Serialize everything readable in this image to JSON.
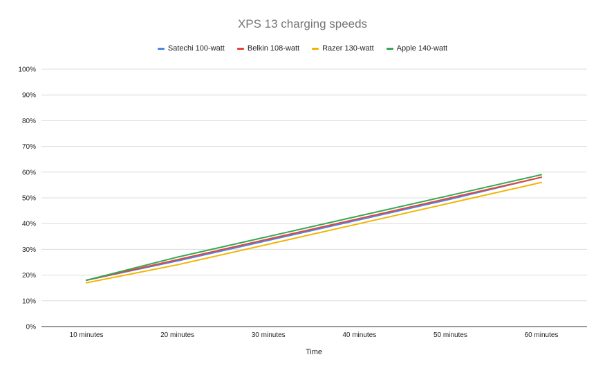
{
  "chart_data": {
    "type": "line",
    "title": "XPS 13 charging speeds",
    "xlabel": "Time",
    "ylabel": "",
    "categories": [
      "10 minutes",
      "20 minutes",
      "30 minutes",
      "40 minutes",
      "50 minutes",
      "60 minutes"
    ],
    "y_ticks": [
      "0%",
      "10%",
      "20%",
      "30%",
      "40%",
      "50%",
      "60%",
      "70%",
      "80%",
      "90%",
      "100%"
    ],
    "ylim": [
      0,
      100
    ],
    "grid": true,
    "legend_position": "top",
    "series": [
      {
        "name": "Satechi 100-watt",
        "color": "#4a86e8",
        "values": [
          18,
          25.5,
          33.5,
          41.5,
          49.5,
          58
        ]
      },
      {
        "name": "Belkin 108-watt",
        "color": "#e84335",
        "values": [
          18,
          26,
          34,
          42,
          50,
          58
        ]
      },
      {
        "name": "Razer 130-watt",
        "color": "#f4b400",
        "values": [
          17,
          24,
          32,
          40,
          48,
          56
        ]
      },
      {
        "name": "Apple 140-watt",
        "color": "#34a853",
        "values": [
          18,
          27,
          35,
          43,
          51,
          59
        ]
      }
    ]
  }
}
